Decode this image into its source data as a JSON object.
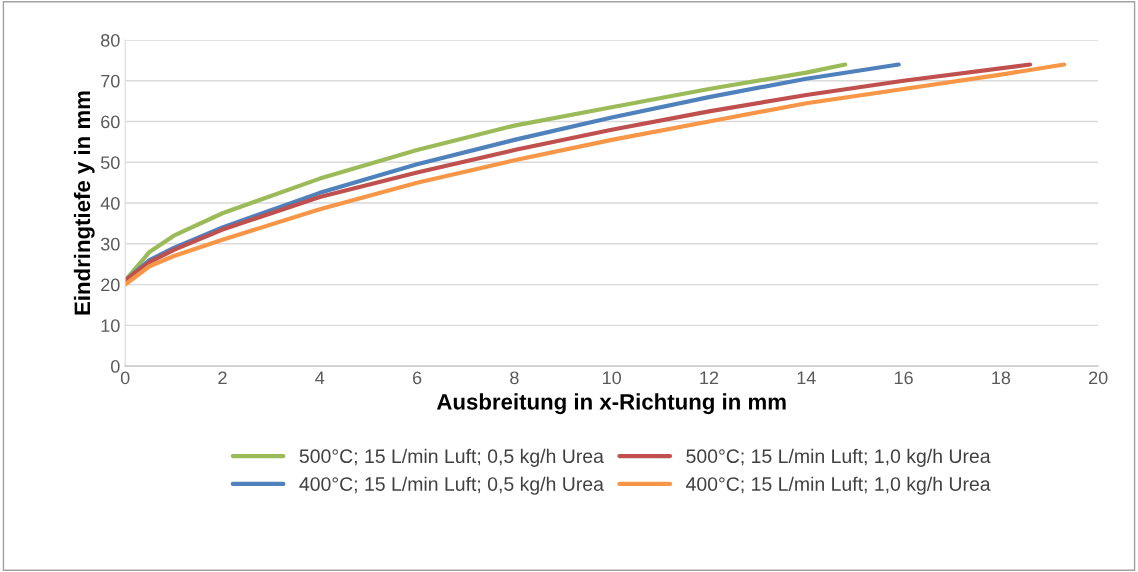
{
  "chart_data": {
    "type": "line",
    "xlabel": "Ausbreitung in x-Richtung in mm",
    "ylabel": "Eindringtiefe y in mm",
    "xlim": [
      0,
      20
    ],
    "xticks": [
      0,
      2,
      4,
      6,
      8,
      10,
      12,
      14,
      16,
      18,
      20
    ],
    "ylim": [
      0,
      80
    ],
    "yticks": [
      0,
      10,
      20,
      30,
      40,
      50,
      60,
      70,
      80
    ],
    "grid": "y",
    "legend": "bottom",
    "marker": "none",
    "line_style": "solid",
    "series": [
      {
        "name": "500°C; 15 L/min Luft; 0,5 kg/h Urea",
        "color": "#9bbb59",
        "x": [
          0,
          0.5,
          1,
          2,
          4,
          6,
          8,
          10,
          12,
          14,
          14.8
        ],
        "values": [
          21,
          28,
          32,
          37.5,
          46,
          53,
          59,
          63.5,
          68,
          72,
          74
        ]
      },
      {
        "name": "400°C; 15 L/min Luft; 0,5 kg/h Urea",
        "color": "#4f81bd",
        "x": [
          0,
          0.5,
          1,
          2,
          4,
          6,
          8,
          10,
          12,
          14,
          15.9
        ],
        "values": [
          21,
          26,
          29,
          34,
          42.5,
          49.5,
          55.5,
          61,
          66,
          70.5,
          74
        ]
      },
      {
        "name": "500°C; 15 L/min Luft; 1,0 kg/h Urea",
        "color": "#c0504d",
        "x": [
          0,
          0.5,
          1,
          2,
          4,
          6,
          8,
          10,
          12,
          14,
          16,
          18.6
        ],
        "values": [
          21,
          25.5,
          28.5,
          33.5,
          41.5,
          47.5,
          53,
          58,
          62.5,
          66.5,
          70,
          74
        ]
      },
      {
        "name": "400°C; 15 L/min Luft; 1,0 kg/h Urea",
        "color": "#f79646",
        "x": [
          0,
          0.5,
          1,
          2,
          4,
          6,
          8,
          10,
          12,
          14,
          16,
          18,
          19.3
        ],
        "values": [
          20,
          24.5,
          27,
          31,
          38.5,
          45,
          50.5,
          55.5,
          60,
          64.5,
          68,
          71.5,
          74
        ]
      }
    ]
  }
}
